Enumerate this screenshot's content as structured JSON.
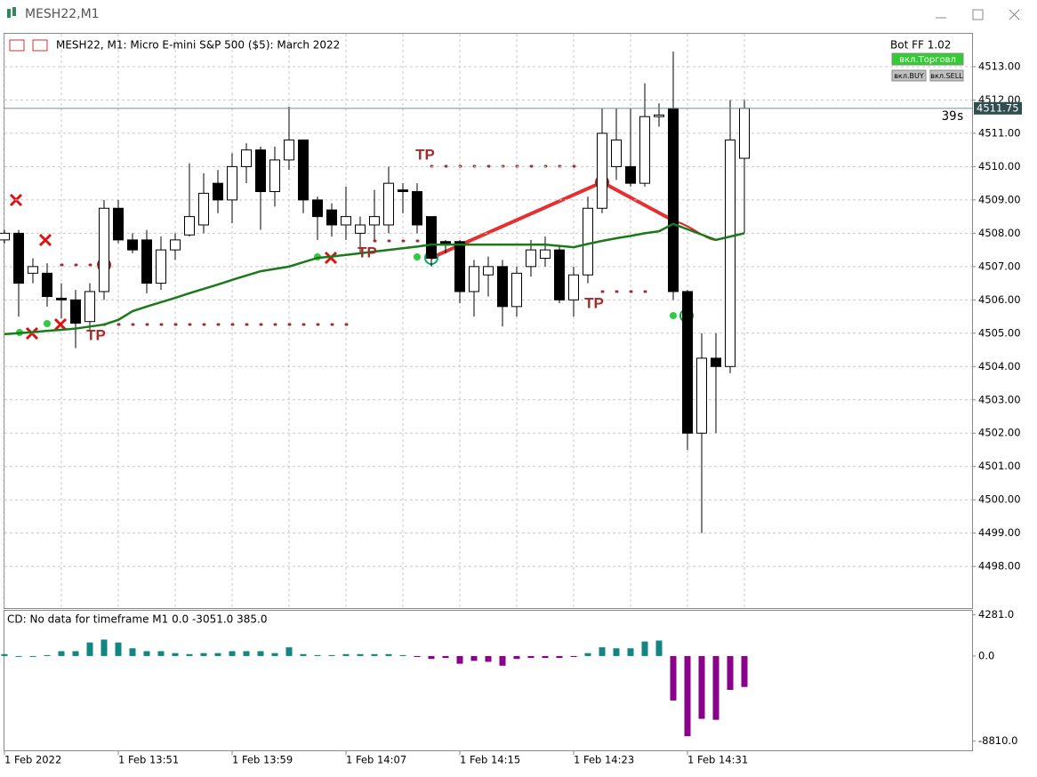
{
  "window_title": "MESH22,M1",
  "timer": "39s",
  "bot": {
    "name": "Bot FF 1.02",
    "buttons": [
      "вкл.Торговл",
      "вкл.BUY",
      "вкл.SELL"
    ]
  },
  "last_price": 4511.75,
  "chart_data": [
    {
      "type": "candlestick",
      "title": "MESH22, M1:  Micro E-mini S&P 500 ($5): March 2022",
      "categories": [
        "1 Feb 2022",
        null,
        null,
        null,
        null,
        null,
        null,
        null,
        "1 Feb 13:51",
        null,
        null,
        null,
        null,
        null,
        null,
        null,
        "1 Feb 13:59",
        null,
        null,
        null,
        null,
        null,
        null,
        null,
        "1 Feb 14:07",
        null,
        null,
        null,
        null,
        null,
        null,
        null,
        "1 Feb 14:15",
        null,
        null,
        null,
        null,
        null,
        null,
        null,
        "1 Feb 14:23",
        null,
        null,
        null,
        null,
        null,
        null,
        null,
        "1 Feb 14:31",
        null,
        null,
        null,
        null
      ],
      "open": [
        4507.8,
        4508.0,
        4506.8,
        4506.8,
        4506.05,
        4506.0,
        4505.35,
        4506.25,
        4508.75,
        4507.8,
        4507.8,
        4506.5,
        4507.5,
        4507.95,
        4508.25,
        4509.5,
        4509.0,
        4510.0,
        4510.5,
        4509.25,
        4510.2,
        4510.8,
        4509.0,
        4508.7,
        4508.25,
        4508.0,
        4508.25,
        4508.25,
        4509.3,
        4509.25,
        4508.5,
        4507.75,
        4507.75,
        4506.25,
        4506.75,
        4507.0,
        4505.8,
        4507.0,
        4507.25,
        4507.5,
        4506.0,
        4506.75,
        4508.75,
        4510.0,
        4510.0,
        4509.5,
        4511.5,
        4511.75,
        4506.25,
        4502.0,
        4504.25,
        4504.0,
        4510.25
      ],
      "high": [
        4508.1,
        4508.1,
        4507.25,
        4507.1,
        4506.5,
        4506.3,
        4506.5,
        4509.0,
        4509.0,
        4508.0,
        4508.1,
        4507.9,
        4508.0,
        4510.1,
        4509.8,
        4509.9,
        4510.4,
        4510.7,
        4510.6,
        4510.6,
        4511.8,
        4510.8,
        4509.1,
        4508.9,
        4509.4,
        4508.5,
        4509.3,
        4510.0,
        4509.5,
        4509.5,
        4508.5,
        4507.8,
        4507.8,
        4507.2,
        4507.3,
        4507.2,
        4507.0,
        4507.8,
        4507.9,
        4507.6,
        4507.0,
        4509.1,
        4511.75,
        4511.75,
        4511.75,
        4512.5,
        4511.9,
        4513.45,
        4506.3,
        4505.0,
        4505.0,
        4512.0,
        4512.0
      ],
      "low": [
        4507.7,
        4505.5,
        4506.5,
        4505.8,
        4505.45,
        4504.55,
        4505.1,
        4506.0,
        4507.7,
        4507.4,
        4506.2,
        4506.3,
        4507.2,
        4507.9,
        4508.0,
        4508.6,
        4508.3,
        4509.5,
        4508.1,
        4508.8,
        4509.9,
        4508.6,
        4507.8,
        4507.9,
        4507.8,
        4507.4,
        4507.8,
        4508.0,
        4508.6,
        4508.0,
        4507.0,
        4507.4,
        4505.9,
        4505.5,
        4506.1,
        4505.2,
        4505.5,
        4506.7,
        4507.0,
        4505.9,
        4505.5,
        4506.5,
        4508.6,
        4509.6,
        4509.4,
        4509.4,
        4511.2,
        4506.0,
        4501.5,
        4499.0,
        4502.0,
        4503.8,
        4508.0
      ],
      "close": [
        4508.0,
        4506.5,
        4507.0,
        4506.1,
        4506.0,
        4505.3,
        4506.25,
        4508.75,
        4507.8,
        4507.5,
        4506.5,
        4507.5,
        4507.8,
        4508.5,
        4509.2,
        4509.0,
        4510.0,
        4510.5,
        4509.25,
        4510.2,
        4510.8,
        4509.0,
        4508.5,
        4508.25,
        4508.5,
        4508.25,
        4508.5,
        4509.5,
        4509.25,
        4508.25,
        4507.25,
        4507.7,
        4506.25,
        4507.0,
        4507.0,
        4505.8,
        4506.8,
        4507.5,
        4507.5,
        4506.0,
        4506.75,
        4508.75,
        4511.0,
        4510.8,
        4509.5,
        4511.5,
        4511.55,
        4506.25,
        4502.0,
        4504.25,
        4504.0,
        4510.8,
        4511.75
      ],
      "ma": {
        "color": "#1a7a1a",
        "values": [
          4504.97,
          4505.0,
          4505.03,
          4505.07,
          4505.1,
          4505.14,
          4505.2,
          4505.26,
          4505.4,
          4505.66,
          4505.8,
          4505.93,
          4506.06,
          4506.2,
          4506.33,
          4506.46,
          4506.6,
          4506.73,
          4506.86,
          4506.93,
          4507.0,
          4507.13,
          4507.26,
          4507.3,
          4507.35,
          4507.4,
          4507.45,
          4507.5,
          4507.55,
          4507.6,
          4507.66,
          4507.66,
          4507.66,
          4507.66,
          4507.66,
          4507.66,
          4507.66,
          4507.66,
          4507.66,
          4507.62,
          4507.58,
          4507.68,
          4507.77,
          4507.85,
          4507.92,
          4508.0,
          4508.06,
          4508.28,
          4508.12,
          4507.96,
          4507.8,
          4507.9,
          4508.0
        ]
      },
      "annotations": [
        "TP",
        "TP",
        "TP",
        "TP"
      ],
      "ylim": [
        4496.75,
        4514
      ],
      "yticks": [
        {
          "value": 4498,
          "label": "4498.00"
        },
        {
          "value": 4499,
          "label": "4499.00"
        },
        {
          "value": 4500,
          "label": "4500.00"
        },
        {
          "value": 4501,
          "label": "4501.00"
        },
        {
          "value": 4502,
          "label": "4502.00"
        },
        {
          "value": 4503,
          "label": "4503.00"
        },
        {
          "value": 4504,
          "label": "4504.00"
        },
        {
          "value": 4505,
          "label": "4505.00"
        },
        {
          "value": 4506,
          "label": "4506.00"
        },
        {
          "value": 4507,
          "label": "4507.00"
        },
        {
          "value": 4508,
          "label": "4508.00"
        },
        {
          "value": 4509,
          "label": "4509.00"
        },
        {
          "value": 4510,
          "label": "4510.00"
        },
        {
          "value": 4511,
          "label": "4511.00"
        },
        {
          "value": 4512,
          "label": "4512.00"
        },
        {
          "value": 4513,
          "label": "4513.00"
        }
      ],
      "grid": true
    },
    {
      "type": "bar",
      "title": "CD: No data for timeframe M1 0.0 -3051.0 385.0",
      "values": [
        200,
        0,
        0,
        100,
        500,
        500,
        1400,
        1700,
        1400,
        800,
        500,
        500,
        300,
        200,
        300,
        300,
        500,
        500,
        500,
        300,
        900,
        200,
        100,
        100,
        200,
        200,
        200,
        200,
        100,
        -100,
        -300,
        -200,
        -800,
        -500,
        -600,
        -1000,
        -300,
        -200,
        -200,
        -200,
        -100,
        300,
        900,
        800,
        800,
        1500,
        1600,
        -4600,
        -8300,
        -6500,
        -6600,
        -3500,
        -3200
      ],
      "color": "#138585",
      "negative_color": "#8b008b",
      "ylim": [
        -9850,
        4500
      ],
      "yticks": [
        {
          "value": 4281,
          "label": "4281.0"
        },
        {
          "value": 0,
          "label": "0.0"
        },
        {
          "value": -8810,
          "label": "-8810.0"
        }
      ]
    }
  ]
}
